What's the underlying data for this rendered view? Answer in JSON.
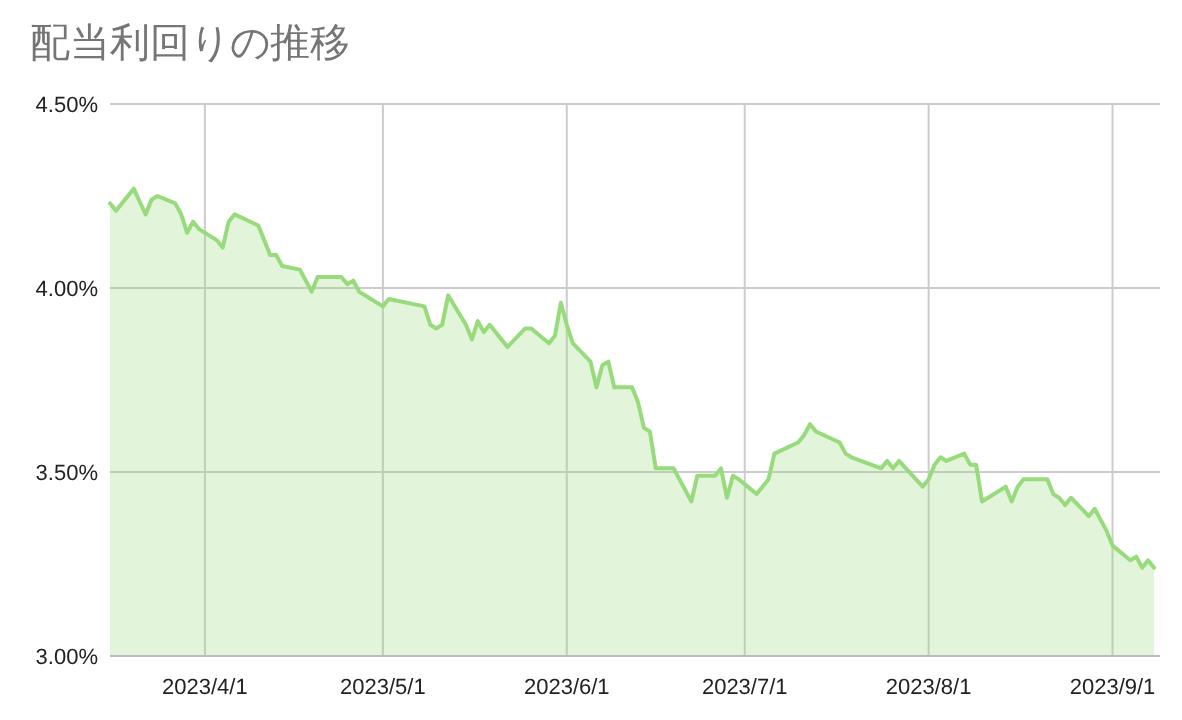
{
  "chart_data": {
    "type": "area",
    "title": "配当利回りの推移",
    "color": "#98db7c",
    "grid": true,
    "xlim": [
      "2023-03-16",
      "2023-09-09"
    ],
    "ylim": [
      3,
      4.5
    ],
    "xticks": [
      {
        "value": "2023-04-01",
        "label": "2023/4/1"
      },
      {
        "value": "2023-05-01",
        "label": "2023/5/1"
      },
      {
        "value": "2023-06-01",
        "label": "2023/6/1"
      },
      {
        "value": "2023-07-01",
        "label": "2023/7/1"
      },
      {
        "value": "2023-08-01",
        "label": "2023/8/1"
      },
      {
        "value": "2023-09-01",
        "label": "2023/9/1"
      }
    ],
    "yticks": [
      {
        "value": 3,
        "label": "3.00%"
      },
      {
        "value": 3.5,
        "label": "3.50%"
      },
      {
        "value": 4,
        "label": "4.00%"
      },
      {
        "value": 4.5,
        "label": "4.50%"
      }
    ],
    "x": [
      "2023-03-16",
      "2023-03-17",
      "2023-03-20",
      "2023-03-22",
      "2023-03-23",
      "2023-03-24",
      "2023-03-27",
      "2023-03-28",
      "2023-03-29",
      "2023-03-30",
      "2023-03-31",
      "2023-04-03",
      "2023-04-04",
      "2023-04-05",
      "2023-04-06",
      "2023-04-10",
      "2023-04-11",
      "2023-04-12",
      "2023-04-13",
      "2023-04-14",
      "2023-04-17",
      "2023-04-18",
      "2023-04-19",
      "2023-04-20",
      "2023-04-24",
      "2023-04-25",
      "2023-04-26",
      "2023-04-27",
      "2023-05-01",
      "2023-05-02",
      "2023-05-08",
      "2023-05-09",
      "2023-05-10",
      "2023-05-11",
      "2023-05-12",
      "2023-05-15",
      "2023-05-16",
      "2023-05-17",
      "2023-05-18",
      "2023-05-19",
      "2023-05-22",
      "2023-05-25",
      "2023-05-26",
      "2023-05-29",
      "2023-05-30",
      "2023-05-31",
      "2023-06-01",
      "2023-06-02",
      "2023-06-05",
      "2023-06-06",
      "2023-06-07",
      "2023-06-08",
      "2023-06-09",
      "2023-06-12",
      "2023-06-13",
      "2023-06-14",
      "2023-06-15",
      "2023-06-16",
      "2023-06-19",
      "2023-06-20",
      "2023-06-21",
      "2023-06-22",
      "2023-06-23",
      "2023-06-26",
      "2023-06-27",
      "2023-06-28",
      "2023-06-29",
      "2023-06-30",
      "2023-07-03",
      "2023-07-04",
      "2023-07-05",
      "2023-07-06",
      "2023-07-10",
      "2023-07-11",
      "2023-07-12",
      "2023-07-13",
      "2023-07-17",
      "2023-07-18",
      "2023-07-19",
      "2023-07-24",
      "2023-07-25",
      "2023-07-26",
      "2023-07-27",
      "2023-07-31",
      "2023-08-01",
      "2023-08-02",
      "2023-08-03",
      "2023-08-04",
      "2023-08-07",
      "2023-08-08",
      "2023-08-09",
      "2023-08-10",
      "2023-08-14",
      "2023-08-15",
      "2023-08-16",
      "2023-08-17",
      "2023-08-21",
      "2023-08-22",
      "2023-08-23",
      "2023-08-24",
      "2023-08-25",
      "2023-08-28",
      "2023-08-29",
      "2023-08-30",
      "2023-08-31",
      "2023-09-01",
      "2023-09-04",
      "2023-09-05",
      "2023-09-06",
      "2023-09-07",
      "2023-09-08"
    ],
    "values": [
      4.23,
      4.21,
      4.27,
      4.2,
      4.24,
      4.25,
      4.23,
      4.2,
      4.15,
      4.18,
      4.16,
      4.13,
      4.11,
      4.18,
      4.2,
      4.17,
      4.13,
      4.09,
      4.09,
      4.06,
      4.05,
      4.02,
      3.99,
      4.03,
      4.03,
      4.01,
      4.02,
      3.99,
      3.95,
      3.97,
      3.95,
      3.9,
      3.89,
      3.9,
      3.98,
      3.9,
      3.86,
      3.91,
      3.88,
      3.9,
      3.84,
      3.89,
      3.89,
      3.85,
      3.87,
      3.96,
      3.9,
      3.85,
      3.8,
      3.73,
      3.79,
      3.8,
      3.73,
      3.73,
      3.69,
      3.62,
      3.61,
      3.51,
      3.51,
      3.48,
      3.45,
      3.42,
      3.49,
      3.49,
      3.51,
      3.43,
      3.49,
      3.48,
      3.44,
      3.46,
      3.48,
      3.55,
      3.58,
      3.6,
      3.63,
      3.61,
      3.58,
      3.55,
      3.54,
      3.51,
      3.53,
      3.51,
      3.53,
      3.46,
      3.48,
      3.52,
      3.54,
      3.53,
      3.55,
      3.52,
      3.52,
      3.42,
      3.46,
      3.42,
      3.46,
      3.48,
      3.48,
      3.44,
      3.43,
      3.41,
      3.43,
      3.38,
      3.4,
      3.37,
      3.34,
      3.3,
      3.26,
      3.27,
      3.24,
      3.26,
      3.24
    ]
  }
}
